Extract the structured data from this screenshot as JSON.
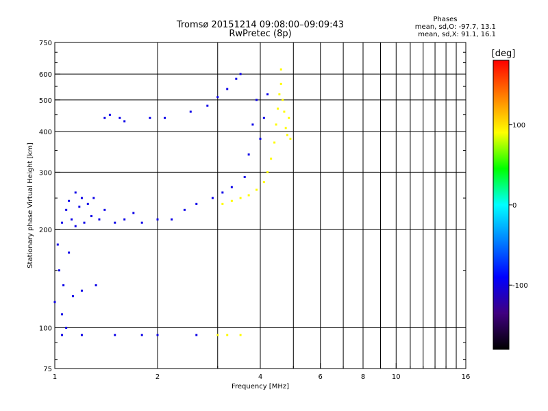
{
  "chart_data": {
    "type": "scatter",
    "title": "Tromsø 20151214 09:08:00–09:09:43",
    "subtitle": "RwPretec (8p)",
    "xlabel": "Frequency [MHz]",
    "ylabel": "Stationary phase Virtual Height [km]",
    "x_scale": "log",
    "y_scale": "log",
    "xlim": [
      1,
      16
    ],
    "ylim": [
      75,
      750
    ],
    "x_ticks": [
      1,
      2,
      4,
      6,
      8,
      10,
      16
    ],
    "x_tick_labels": [
      "1",
      "2",
      "4",
      "6",
      "8",
      "10",
      "16"
    ],
    "x_minor_ticks": [
      3,
      5,
      7,
      9,
      11,
      12,
      13,
      14,
      15
    ],
    "y_ticks": [
      75,
      100,
      200,
      300,
      400,
      500,
      600,
      750
    ],
    "y_tick_labels": [
      "75",
      "100",
      "200",
      "300",
      "400",
      "500",
      "600",
      "750"
    ],
    "y_minor_ticks": [
      80,
      90,
      150,
      250,
      350,
      450,
      550,
      650,
      700
    ],
    "grid": true,
    "phase_box": {
      "title": "Phases",
      "line_o": "mean, sd,O: -97.7, 13.1",
      "line_x": "mean, sd,X:  91.1, 16.1"
    },
    "colorbar": {
      "label": "[deg]",
      "range": [
        -180,
        180
      ],
      "ticks": [
        100,
        0,
        -100
      ],
      "tick_labels": [
        "100",
        "0",
        "-100"
      ],
      "colors": [
        "#ff0000",
        "#ff8000",
        "#ffff00",
        "#00ff00",
        "#00ffff",
        "#0080ff",
        "#0000ff",
        "#400080",
        "#000000"
      ]
    },
    "series": [
      {
        "mode": "O",
        "phase_deg": -98,
        "points": [
          [
            1.0,
            120
          ],
          [
            1.02,
            180
          ],
          [
            1.03,
            150
          ],
          [
            1.05,
            110
          ],
          [
            1.05,
            210
          ],
          [
            1.06,
            135
          ],
          [
            1.08,
            230
          ],
          [
            1.08,
            100
          ],
          [
            1.1,
            245
          ],
          [
            1.1,
            170
          ],
          [
            1.12,
            215
          ],
          [
            1.13,
            125
          ],
          [
            1.15,
            260
          ],
          [
            1.15,
            205
          ],
          [
            1.18,
            235
          ],
          [
            1.2,
            250
          ],
          [
            1.2,
            130
          ],
          [
            1.22,
            210
          ],
          [
            1.25,
            240
          ],
          [
            1.28,
            220
          ],
          [
            1.3,
            250
          ],
          [
            1.32,
            135
          ],
          [
            1.35,
            215
          ],
          [
            1.4,
            230
          ],
          [
            1.4,
            440
          ],
          [
            1.45,
            450
          ],
          [
            1.5,
            210
          ],
          [
            1.55,
            440
          ],
          [
            1.6,
            215
          ],
          [
            1.6,
            430
          ],
          [
            1.7,
            225
          ],
          [
            1.8,
            210
          ],
          [
            1.9,
            440
          ],
          [
            2.0,
            215
          ],
          [
            2.1,
            440
          ],
          [
            2.2,
            215
          ],
          [
            2.4,
            230
          ],
          [
            2.5,
            460
          ],
          [
            2.6,
            240
          ],
          [
            2.8,
            480
          ],
          [
            2.9,
            250
          ],
          [
            3.0,
            510
          ],
          [
            3.1,
            260
          ],
          [
            3.2,
            540
          ],
          [
            3.3,
            270
          ],
          [
            3.4,
            580
          ],
          [
            3.5,
            600
          ],
          [
            3.6,
            290
          ],
          [
            3.7,
            340
          ],
          [
            3.8,
            420
          ],
          [
            3.9,
            500
          ],
          [
            4.0,
            380
          ],
          [
            4.1,
            440
          ],
          [
            4.2,
            520
          ],
          [
            1.05,
            95
          ],
          [
            1.2,
            95
          ],
          [
            1.5,
            95
          ],
          [
            1.8,
            95
          ],
          [
            2.0,
            95
          ],
          [
            2.6,
            95
          ]
        ]
      },
      {
        "mode": "X",
        "phase_deg": 91,
        "points": [
          [
            3.1,
            240
          ],
          [
            3.3,
            245
          ],
          [
            3.5,
            250
          ],
          [
            3.7,
            255
          ],
          [
            3.9,
            265
          ],
          [
            4.1,
            280
          ],
          [
            4.2,
            300
          ],
          [
            4.3,
            330
          ],
          [
            4.4,
            370
          ],
          [
            4.45,
            420
          ],
          [
            4.5,
            470
          ],
          [
            4.55,
            520
          ],
          [
            4.6,
            560
          ],
          [
            4.6,
            620
          ],
          [
            4.65,
            500
          ],
          [
            4.7,
            460
          ],
          [
            4.75,
            410
          ],
          [
            4.8,
            390
          ],
          [
            4.85,
            440
          ],
          [
            4.9,
            380
          ],
          [
            3.0,
            95
          ],
          [
            3.2,
            95
          ],
          [
            3.5,
            95
          ]
        ]
      }
    ]
  }
}
